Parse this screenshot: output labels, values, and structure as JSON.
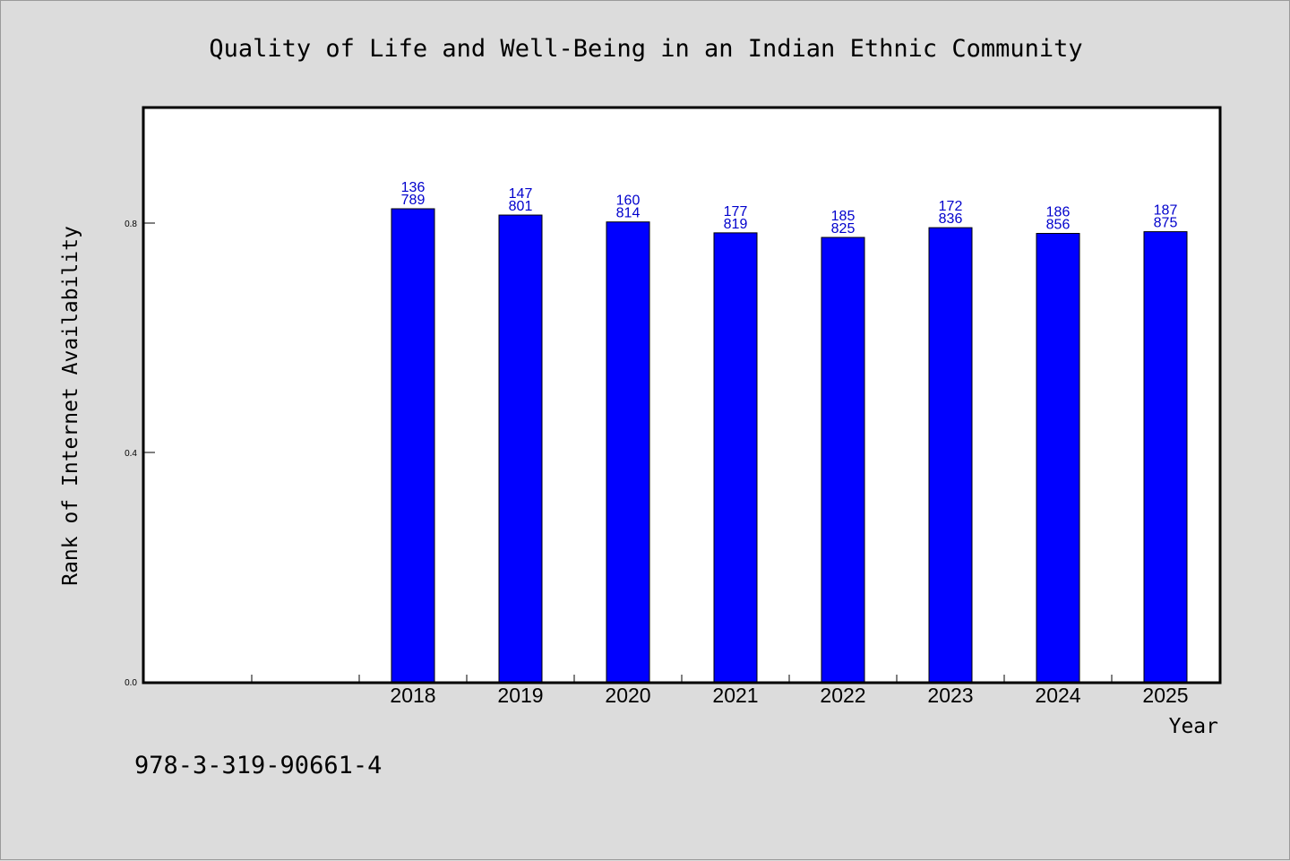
{
  "chart_data": {
    "type": "bar",
    "title": "Quality of Life and Well-Being in an Indian Ethnic Community",
    "xlabel": "Year",
    "ylabel": "Rank of Internet Availability",
    "categories": [
      "",
      "",
      "2018",
      "2019",
      "2020",
      "2021",
      "2022",
      "2023",
      "2024",
      "2025"
    ],
    "values": [
      null,
      null,
      0.825,
      0.814,
      0.802,
      0.783,
      0.775,
      0.792,
      0.782,
      0.785
    ],
    "data_labels": [
      [
        "",
        ""
      ],
      [
        "",
        ""
      ],
      [
        "136",
        "789"
      ],
      [
        "147",
        "801"
      ],
      [
        "160",
        "814"
      ],
      [
        "177",
        "819"
      ],
      [
        "185",
        "825"
      ],
      [
        "172",
        "836"
      ],
      [
        "186",
        "856"
      ],
      [
        "187",
        "875"
      ]
    ],
    "yticks": [
      0.0,
      0.4,
      0.8
    ],
    "ytick_labels": [
      "0.0",
      "0.4",
      "0.8"
    ],
    "ylim": [
      0,
      1.0
    ],
    "grid": false,
    "legend": "none",
    "colors": {
      "bar": "#0000ff",
      "data_label": "#0000cc",
      "background": "#dcdcdc",
      "plot_background": "#ffffff"
    }
  },
  "footnote": "978-3-319-90661-4"
}
